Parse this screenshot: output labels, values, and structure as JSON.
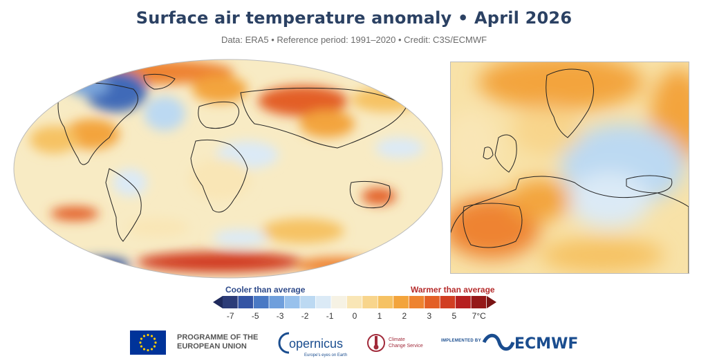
{
  "header": {
    "title": "Surface air temperature anomaly • April 2026",
    "subtitle": "Data: ERA5 • Reference period: 1991–2020 • Credit: C3S/ECMWF"
  },
  "legend": {
    "cool_label": "Cooler than average",
    "warm_label": "Warmer than average",
    "ticks": [
      "-7",
      "-5",
      "-3",
      "-2",
      "-1",
      "0",
      "1",
      "2",
      "3",
      "5",
      "7°C"
    ],
    "colors": [
      "#2c3c78",
      "#3454a4",
      "#4a79c4",
      "#6f9fdc",
      "#98c1ec",
      "#bcd9f2",
      "#dbeaf6",
      "#f6f2e4",
      "#f9e6b6",
      "#f8d58c",
      "#f6c263",
      "#f3a43c",
      "#ee8330",
      "#e35f26",
      "#d13e22",
      "#b62020",
      "#951818"
    ],
    "cool_color": "#2e4a8a",
    "warm_color": "#b52a2a"
  },
  "footer": {
    "eu_text": "PROGRAMME OF THE EUROPEAN UNION",
    "copernicus_name": "opernicus",
    "copernicus_tagline": "Europe's eyes on Earth",
    "c3s_line1": "Climate",
    "c3s_line2": "Change Service",
    "implemented_by": "IMPLEMENTED BY",
    "ecmwf_name": "ECMWF"
  }
}
